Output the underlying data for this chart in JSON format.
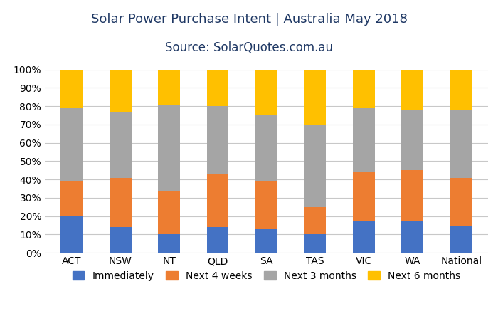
{
  "categories": [
    "ACT",
    "NSW",
    "NT",
    "QLD",
    "SA",
    "TAS",
    "VIC",
    "WA",
    "National"
  ],
  "series": {
    "Immediately": [
      20,
      14,
      10,
      14,
      13,
      10,
      17,
      17,
      15
    ],
    "Next 4 weeks": [
      19,
      27,
      24,
      29,
      26,
      15,
      27,
      28,
      26
    ],
    "Next 3 months": [
      40,
      36,
      47,
      37,
      36,
      45,
      35,
      33,
      37
    ],
    "Next 6 months": [
      21,
      23,
      19,
      20,
      25,
      30,
      21,
      22,
      22
    ]
  },
  "colors": {
    "Immediately": "#4472C4",
    "Next 4 weeks": "#ED7D31",
    "Next 3 months": "#A5A5A5",
    "Next 6 months": "#FFC000"
  },
  "title_line1": "Solar Power Purchase Intent | Australia May 2018",
  "title_line2": "Source: SolarQuotes.com.au",
  "ylabel_ticks": [
    "0%",
    "10%",
    "20%",
    "30%",
    "40%",
    "50%",
    "60%",
    "70%",
    "80%",
    "90%",
    "100%"
  ],
  "ylim": [
    0,
    100
  ],
  "background_color": "#FFFFFF",
  "plot_bg_color": "#FFFFFF",
  "grid_color": "#C8C8C8",
  "title_fontsize": 13,
  "subtitle_fontsize": 12,
  "tick_fontsize": 10,
  "legend_fontsize": 10,
  "bar_width": 0.45
}
